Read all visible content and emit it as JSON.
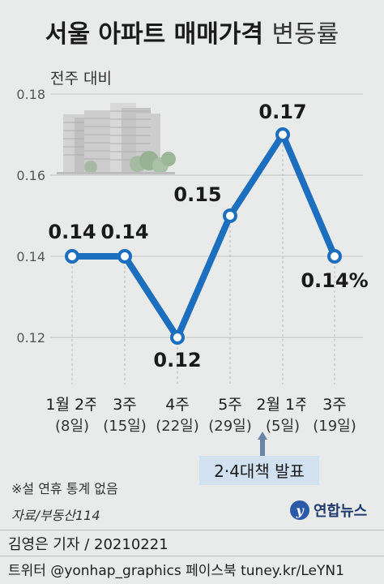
{
  "title_bold": "서울 아파트 매매가격",
  "title_light": "변동률",
  "subtitle": "전주 대비",
  "note": "※설 연휴 통계 없음",
  "source": "자료/부동산114",
  "logo_text": "연합뉴스",
  "event_label": "2·4대책 발표",
  "footer": {
    "reporter": "김영은 기자 / 20210221",
    "sns": "트위터 @yonhap_graphics  페이스북 tuney.kr/LeYN1"
  },
  "colors": {
    "line": "#1c6fbf",
    "background": "#e9eaea",
    "text": "#222222"
  },
  "chart_data": {
    "type": "line",
    "x": [
      "1월 2주",
      "3주",
      "4주",
      "5주",
      "2월 1주",
      "3주"
    ],
    "x_sub": [
      "(8일)",
      "(15일)",
      "(22일)",
      "(29일)",
      "(5일)",
      "(19일)"
    ],
    "values": [
      0.14,
      0.14,
      0.12,
      0.15,
      0.17,
      0.14
    ],
    "data_labels": [
      "0.14",
      "0.14",
      "0.12",
      "0.15",
      "0.17",
      "0.14%"
    ],
    "ylim": [
      0.12,
      0.18
    ],
    "yticks": [
      "0.12",
      "0.14",
      "0.16",
      "0.18"
    ],
    "grid": true
  }
}
